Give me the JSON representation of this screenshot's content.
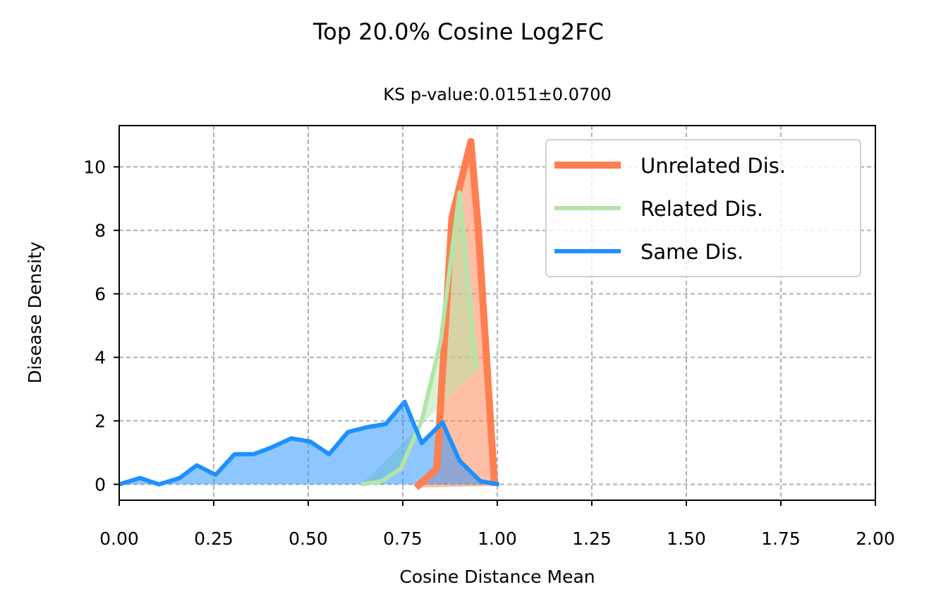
{
  "chart_data": {
    "type": "line",
    "title": "Top 20.0% Cosine Log2FC",
    "subtitle": "KS p-value:0.0151±0.0700",
    "xlabel": "Cosine Distance Mean",
    "ylabel": "Disease Density",
    "xlim": [
      0,
      2
    ],
    "ylim": [
      -0.5,
      11.3
    ],
    "xticks": [
      "0.00",
      "0.25",
      "0.50",
      "0.75",
      "1.00",
      "1.25",
      "1.50",
      "1.75",
      "2.00"
    ],
    "yticks": [
      "0",
      "2",
      "4",
      "6",
      "8",
      "10"
    ],
    "grid": true,
    "legend_position": "top-right",
    "filled": true,
    "series": [
      {
        "name": "Unrelated Dis.",
        "color": "#FF7F50",
        "fill_color": "#FF7F50",
        "x": [
          0.785,
          0.84,
          0.88,
          0.93,
          0.95,
          0.993
        ],
        "y": [
          -0.1,
          0.5,
          8.4,
          10.8,
          8.0,
          -0.05
        ]
      },
      {
        "name": "Related Dis.",
        "color": "#B2E5A7",
        "fill_color": "#B2E5A7",
        "x": [
          0.64,
          0.695,
          0.745,
          0.8,
          0.85,
          0.9,
          0.945
        ],
        "y": [
          0.0,
          0.1,
          0.5,
          2.0,
          4.5,
          9.2,
          3.6
        ]
      },
      {
        "name": "Same Dis.",
        "color": "#1E90FF",
        "fill_color": "#1E90FF",
        "x": [
          0.0,
          0.055,
          0.105,
          0.16,
          0.205,
          0.255,
          0.305,
          0.355,
          0.4,
          0.455,
          0.505,
          0.555,
          0.605,
          0.655,
          0.705,
          0.755,
          0.8,
          0.855,
          0.9,
          0.955,
          1.005
        ],
        "y": [
          0.0,
          0.2,
          0.0,
          0.2,
          0.6,
          0.3,
          0.95,
          0.95,
          1.15,
          1.45,
          1.35,
          0.95,
          1.65,
          1.8,
          1.9,
          2.6,
          1.3,
          1.95,
          0.75,
          0.1,
          0.0
        ]
      }
    ]
  }
}
